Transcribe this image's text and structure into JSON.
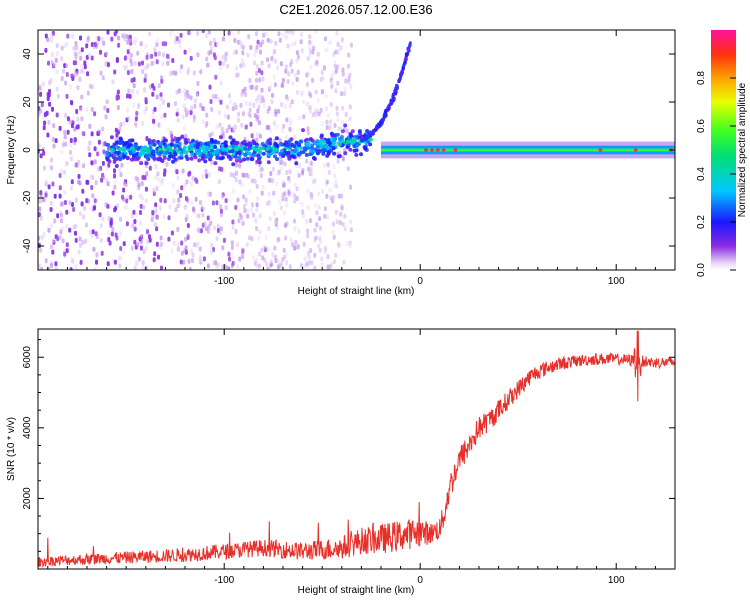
{
  "title": "C2E1.2026.057.12.00.E36",
  "chart_data": [
    {
      "type": "heatmap",
      "id": "spectrogram",
      "xlabel": "Height of straight line (km)",
      "ylabel": "Frequency (Hz)",
      "xlim": [
        -195,
        130
      ],
      "ylim": [
        -50,
        50
      ],
      "xticks": [
        -100,
        0,
        100
      ],
      "xtick_labels": [
        "-100",
        "0",
        "100"
      ],
      "yticks": [
        -40,
        -20,
        0,
        20,
        40
      ],
      "ytick_labels": [
        "-40",
        "-20",
        "0",
        "20",
        "40"
      ],
      "colorbar": {
        "label": "Normalized spectral amplitude",
        "range": [
          0,
          1
        ],
        "ticks": [
          0.0,
          0.2,
          0.4,
          0.6,
          0.8
        ],
        "tick_labels": [
          "0.0",
          "0.2",
          "0.4",
          "0.6",
          "0.8"
        ]
      },
      "features": {
        "line_center_hz": 0,
        "line_start_km": -20,
        "line_end_km": 130,
        "line_peak_amplitude": 0.95,
        "turbulent_core_range_km": [
          -160,
          -25
        ],
        "turbulent_core_amplitude": 0.45,
        "diffuse_noise_range_km": [
          -195,
          -35
        ],
        "chirp_branch": {
          "start_km": -30,
          "end_km": -5,
          "start_hz": 5,
          "end_hz": 45
        }
      }
    },
    {
      "type": "line",
      "id": "snr",
      "xlabel": "Height of straight line (km)",
      "ylabel": "SNR (10 * v/v)",
      "xlim": [
        -195,
        130
      ],
      "ylim": [
        0,
        6800
      ],
      "xticks": [
        -100,
        0,
        100
      ],
      "xtick_labels": [
        "-100",
        "0",
        "100"
      ],
      "yticks": [
        2000,
        4000,
        6000
      ],
      "ytick_labels": [
        "2000",
        "4000",
        "6000"
      ],
      "color": "#e8302a",
      "series": [
        {
          "name": "SNR",
          "x": [
            -195,
            -180,
            -160,
            -140,
            -120,
            -100,
            -80,
            -60,
            -40,
            -30,
            -20,
            -10,
            0,
            5,
            10,
            12,
            15,
            20,
            25,
            30,
            35,
            40,
            45,
            50,
            55,
            60,
            65,
            70,
            80,
            90,
            100,
            110,
            120,
            130
          ],
          "y": [
            200,
            250,
            300,
            350,
            400,
            500,
            600,
            500,
            600,
            800,
            850,
            950,
            1050,
            1000,
            1150,
            1500,
            2300,
            3100,
            3500,
            4000,
            4200,
            4500,
            4800,
            5100,
            5400,
            5600,
            5700,
            5800,
            5900,
            5950,
            5950,
            5900,
            5850,
            5850
          ],
          "noise": [
            140,
            150,
            160,
            180,
            200,
            220,
            240,
            260,
            330,
            380,
            420,
            440,
            420,
            300,
            320,
            380,
            400,
            380,
            360,
            340,
            320,
            300,
            280,
            260,
            240,
            220,
            200,
            190,
            170,
            170,
            160,
            170,
            160,
            160
          ]
        }
      ],
      "annotations": [
        {
          "type": "spike",
          "x": 111,
          "high": 6750,
          "low": 4750
        }
      ]
    }
  ]
}
